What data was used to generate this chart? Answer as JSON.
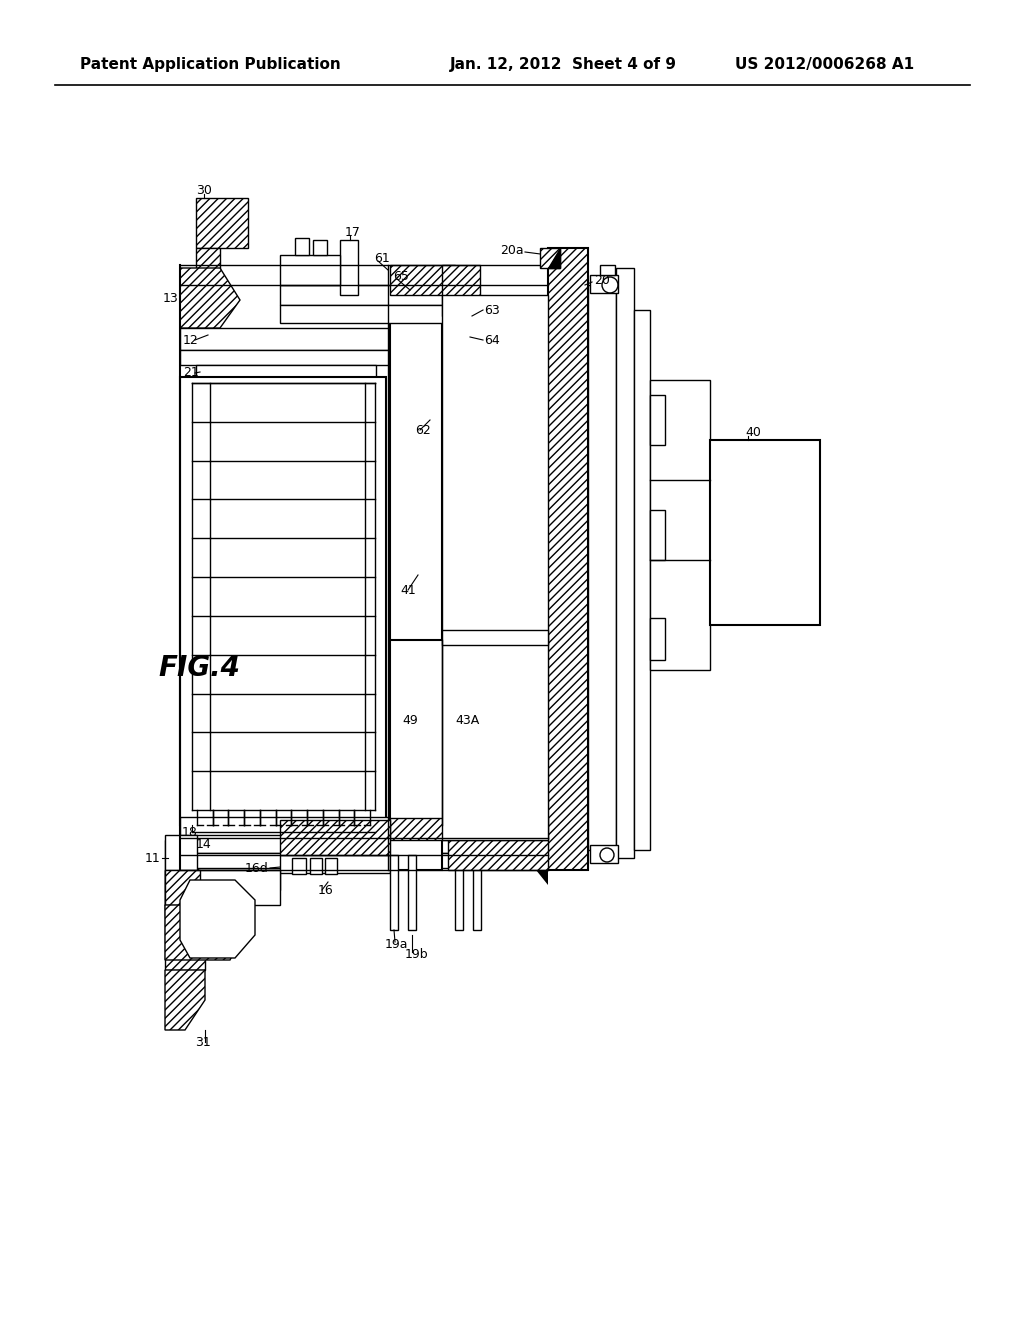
{
  "header_left": "Patent Application Publication",
  "header_center": "Jan. 12, 2012  Sheet 4 of 9",
  "header_right": "US 2012/0006268 A1",
  "figure_label": "FIG.4",
  "bg_color": "#ffffff",
  "line_color": "#000000",
  "header_fontsize": 11,
  "fig_label_fontsize": 18,
  "annotation_fontsize": 9
}
